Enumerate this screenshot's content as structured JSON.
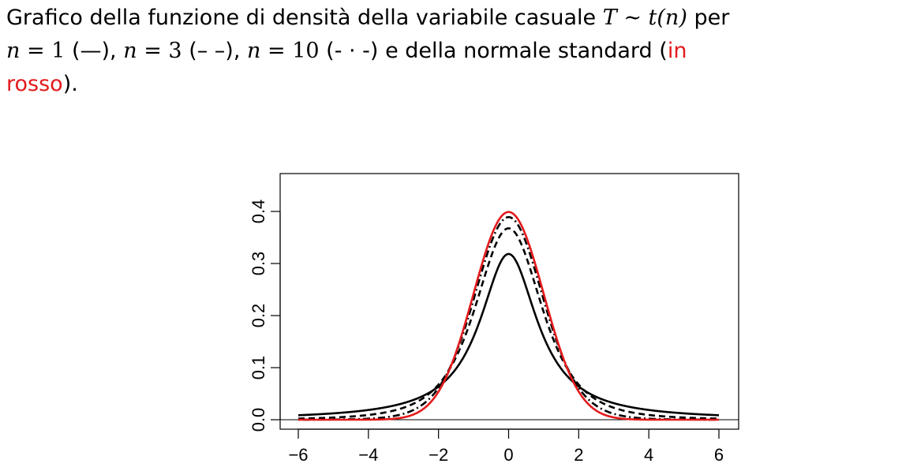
{
  "caption": {
    "part1": "Grafico della funzione di densità della variabile casuale",
    "T_var": "T",
    "sim": "∼",
    "t_func": "t(n)",
    "per": "per",
    "n1": "n",
    "eq1": "= 1",
    "sym1": "(—),",
    "n2": "n",
    "eq2": "= 3",
    "sym2": "(– –),",
    "n3": "n",
    "eq3": "= 10",
    "sym3": "(- · -)",
    "part2": "e della normale standard (",
    "red_in": "in",
    "red_rosso": "rosso",
    "end": ")."
  },
  "colors": {
    "t_curves": "#000000",
    "normal_curve": "#e31a1c",
    "frame": "#000000"
  },
  "chart_data": {
    "type": "line",
    "title": "",
    "xlabel": "",
    "ylabel": "",
    "xlim": [
      -6,
      6
    ],
    "ylim": [
      0,
      0.4
    ],
    "x_ticks": [
      "−6",
      "−4",
      "−2",
      "0",
      "2",
      "4",
      "6"
    ],
    "x_tick_values": [
      -6,
      -4,
      -2,
      0,
      2,
      4,
      6
    ],
    "y_ticks": [
      "0.0",
      "0.1",
      "0.2",
      "0.3",
      "0.4"
    ],
    "y_tick_values": [
      0.0,
      0.1,
      0.2,
      0.3,
      0.4
    ],
    "reference_line_y": 0,
    "grid": false,
    "x": [
      -6,
      -5,
      -4,
      -3,
      -2,
      -1.5,
      -1,
      -0.5,
      0,
      0.5,
      1,
      1.5,
      2,
      3,
      4,
      5,
      6
    ],
    "series": [
      {
        "label": "n = 1",
        "line_style": "solid",
        "color": "#000000",
        "values": [
          0.0086,
          0.0122,
          0.0187,
          0.0318,
          0.0637,
          0.0979,
          0.1592,
          0.2546,
          0.3183,
          0.2546,
          0.1592,
          0.0979,
          0.0637,
          0.0318,
          0.0187,
          0.0122,
          0.0086
        ]
      },
      {
        "label": "n = 3",
        "line_style": "dashed",
        "color": "#000000",
        "values": [
          0.0021,
          0.0042,
          0.0092,
          0.023,
          0.0675,
          0.1273,
          0.2067,
          0.3125,
          0.3676,
          0.3125,
          0.2067,
          0.1273,
          0.0675,
          0.023,
          0.0092,
          0.0042,
          0.0021
        ]
      },
      {
        "label": "n = 10",
        "line_style": "dot-dash",
        "color": "#000000",
        "values": [
          0.0001,
          0.0004,
          0.002,
          0.0114,
          0.0611,
          0.1274,
          0.2304,
          0.3422,
          0.3891,
          0.3422,
          0.2304,
          0.1274,
          0.0611,
          0.0114,
          0.002,
          0.0004,
          0.0001
        ]
      },
      {
        "label": "normale standard",
        "line_style": "solid",
        "color": "#e31a1c",
        "values": [
          0.0,
          0.0,
          0.0001,
          0.0044,
          0.054,
          0.1295,
          0.242,
          0.3521,
          0.3989,
          0.3521,
          0.242,
          0.1295,
          0.054,
          0.0044,
          0.0001,
          0.0,
          0.0
        ]
      }
    ]
  }
}
